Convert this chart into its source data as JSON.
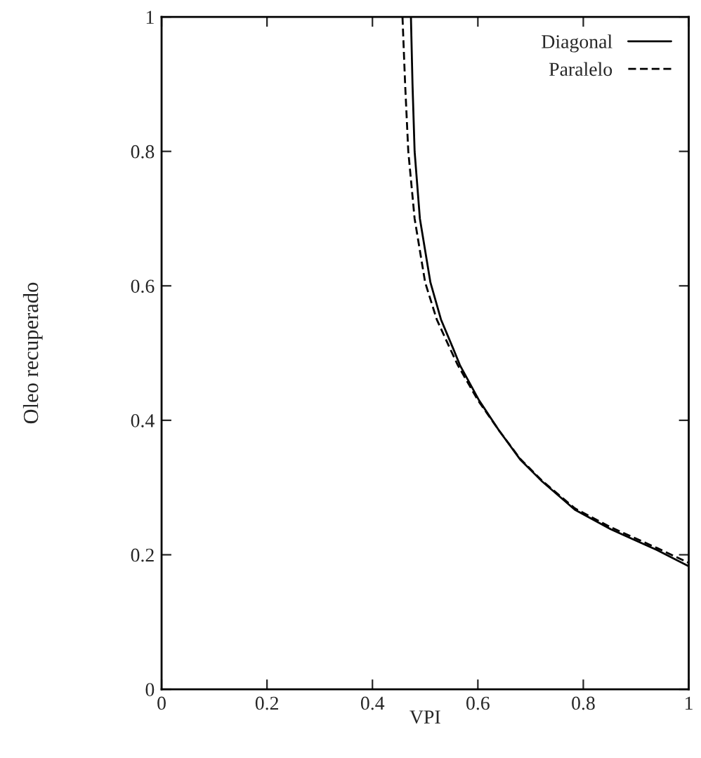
{
  "chart_data": {
    "type": "line",
    "xlabel": "VPI",
    "ylabel": "Oleo recuperado",
    "xlim": [
      0,
      1
    ],
    "ylim": [
      0,
      1
    ],
    "xticks": [
      0,
      0.2,
      0.4,
      0.6,
      0.8,
      1
    ],
    "yticks": [
      0,
      0.2,
      0.4,
      0.6,
      0.8,
      1
    ],
    "grid": false,
    "legend": "top right",
    "marker": "none",
    "series": [
      {
        "name": "Diagonal",
        "color": "#000000",
        "line_style": "solid",
        "x": [
          0.473,
          0.476,
          0.48,
          0.49,
          0.51,
          0.53,
          0.553,
          0.566,
          0.602,
          0.64,
          0.68,
          0.722,
          0.784,
          0.852,
          0.94,
          1.0
        ],
        "values": [
          1,
          0.9,
          0.8,
          0.7,
          0.605,
          0.55,
          0.507,
          0.482,
          0.43,
          0.385,
          0.342,
          0.309,
          0.267,
          0.238,
          0.207,
          0.183
        ]
      },
      {
        "name": "Paralelo",
        "color": "#000000",
        "line_style": "dashed",
        "x": [
          0.457,
          0.462,
          0.468,
          0.48,
          0.5,
          0.522,
          0.547,
          0.562,
          0.6,
          0.64,
          0.68,
          0.722,
          0.784,
          0.852,
          0.94,
          1.0
        ],
        "values": [
          1,
          0.9,
          0.8,
          0.7,
          0.605,
          0.55,
          0.507,
          0.482,
          0.43,
          0.385,
          0.343,
          0.31,
          0.269,
          0.241,
          0.21,
          0.188
        ]
      }
    ]
  }
}
